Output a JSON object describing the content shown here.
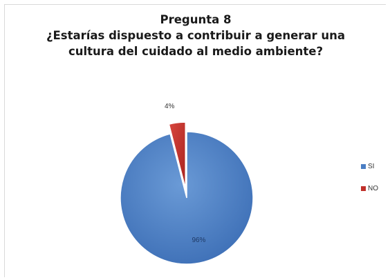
{
  "chart_data": {
    "type": "pie",
    "title": [
      "Pregunta 8",
      "¿Estarías dispuesto a contribuir a generar una",
      "cultura del cuidado al medio ambiente?"
    ],
    "categories": [
      "SI",
      "NO"
    ],
    "values": [
      96,
      4
    ],
    "data_labels": [
      "96%",
      "4%"
    ],
    "exploded": "NO",
    "legend_position": "right",
    "colors": [
      "#4a7ec4",
      "#c0302a"
    ]
  }
}
